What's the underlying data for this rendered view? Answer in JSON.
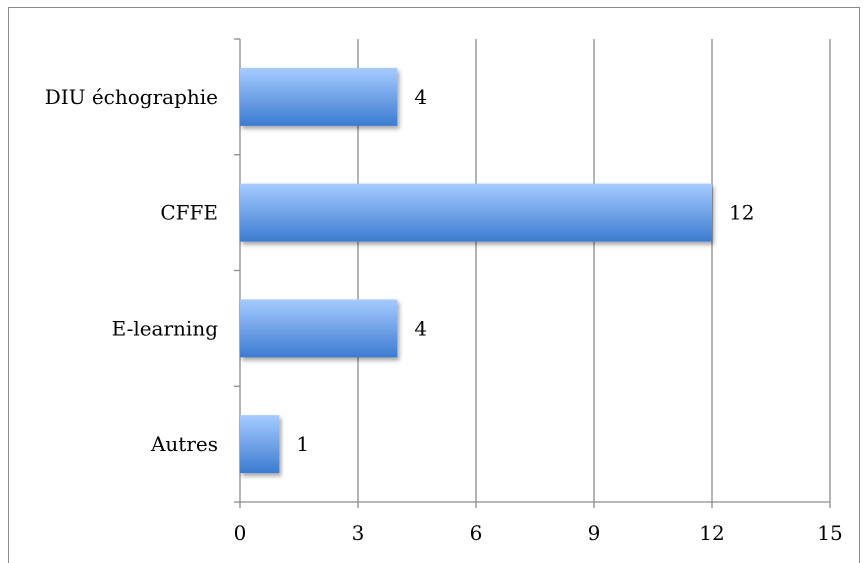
{
  "chart_data": {
    "type": "bar",
    "orientation": "horizontal",
    "categories": [
      "Autres",
      "E-learning",
      "CFFE",
      "DIU échographie"
    ],
    "values": [
      1,
      4,
      12,
      4
    ],
    "data_labels": [
      "1",
      "4",
      "12",
      "4"
    ],
    "xlim": [
      0,
      15
    ],
    "x_ticks": [
      0,
      3,
      6,
      9,
      12,
      15
    ],
    "x_tick_labels": [
      "0",
      "3",
      "6",
      "9",
      "12",
      "15"
    ],
    "grid": "vertical",
    "legend": "none",
    "colors": {
      "bar_top": "#a6cbff",
      "bar_bottom": "#3c7bd0",
      "grid": "#8c8c8c",
      "axis": "#8c8c8c",
      "frame": "#8a8a8a"
    }
  }
}
